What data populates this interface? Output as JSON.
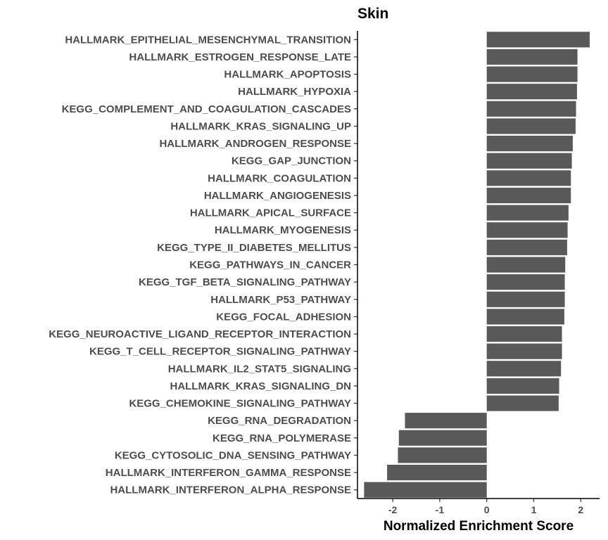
{
  "chart_data": {
    "type": "bar",
    "orientation": "horizontal",
    "title": "Skin",
    "xlabel": "Normalized Enrichment Score",
    "ylabel": "",
    "xlim": [
      -2.75,
      2.4
    ],
    "xticks": [
      -2,
      -1,
      0,
      1,
      2
    ],
    "grid": false,
    "bar_color": "#595959",
    "categories": [
      "HALLMARK_EPITHELIAL_MESENCHYMAL_TRANSITION",
      "HALLMARK_ESTROGEN_RESPONSE_LATE",
      "HALLMARK_APOPTOSIS",
      "HALLMARK_HYPOXIA",
      "KEGG_COMPLEMENT_AND_COAGULATION_CASCADES",
      "HALLMARK_KRAS_SIGNALING_UP",
      "HALLMARK_ANDROGEN_RESPONSE",
      "KEGG_GAP_JUNCTION",
      "HALLMARK_COAGULATION",
      "HALLMARK_ANGIOGENESIS",
      "HALLMARK_APICAL_SURFACE",
      "HALLMARK_MYOGENESIS",
      "KEGG_TYPE_II_DIABETES_MELLITUS",
      "KEGG_PATHWAYS_IN_CANCER",
      "KEGG_TGF_BETA_SIGNALING_PATHWAY",
      "HALLMARK_P53_PATHWAY",
      "KEGG_FOCAL_ADHESION",
      "KEGG_NEUROACTIVE_LIGAND_RECEPTOR_INTERACTION",
      "KEGG_T_CELL_RECEPTOR_SIGNALING_PATHWAY",
      "HALLMARK_IL2_STAT5_SIGNALING",
      "HALLMARK_KRAS_SIGNALING_DN",
      "KEGG_CHEMOKINE_SIGNALING_PATHWAY",
      "KEGG_RNA_DEGRADATION",
      "KEGG_RNA_POLYMERASE",
      "KEGG_CYTOSOLIC_DNA_SENSING_PATHWAY",
      "HALLMARK_INTERFERON_GAMMA_RESPONSE",
      "HALLMARK_INTERFERON_ALPHA_RESPONSE"
    ],
    "values": [
      2.19,
      1.93,
      1.93,
      1.92,
      1.9,
      1.89,
      1.83,
      1.81,
      1.79,
      1.79,
      1.74,
      1.72,
      1.71,
      1.67,
      1.66,
      1.66,
      1.65,
      1.6,
      1.6,
      1.58,
      1.54,
      1.53,
      -1.74,
      -1.87,
      -1.89,
      -2.12,
      -2.61
    ]
  }
}
